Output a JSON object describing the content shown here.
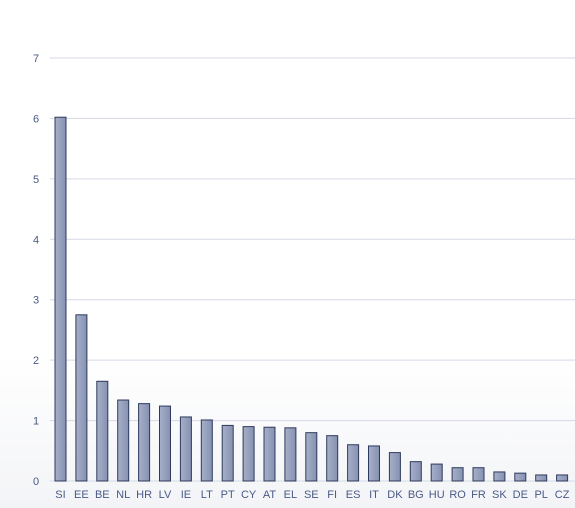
{
  "chart_data": {
    "type": "bar",
    "title": "",
    "xlabel": "",
    "ylabel": "",
    "ylim": [
      0,
      7
    ],
    "yticks": [
      0,
      1,
      2,
      3,
      4,
      5,
      6,
      7
    ],
    "grid": true,
    "categories": [
      "SI",
      "EE",
      "BE",
      "NL",
      "HR",
      "LV",
      "IE",
      "LT",
      "PT",
      "CY",
      "AT",
      "EL",
      "SE",
      "FI",
      "ES",
      "IT",
      "DK",
      "BG",
      "HU",
      "RO",
      "FR",
      "SK",
      "DE",
      "PL",
      "CZ"
    ],
    "values": [
      6.02,
      2.75,
      1.65,
      1.34,
      1.28,
      1.24,
      1.06,
      1.01,
      0.92,
      0.9,
      0.89,
      0.88,
      0.8,
      0.75,
      0.6,
      0.58,
      0.47,
      0.32,
      0.28,
      0.22,
      0.22,
      0.15,
      0.13,
      0.1,
      0.1
    ],
    "colors": {
      "bar_fill_light": "#a7b0c8",
      "bar_fill_dark": "#8591b2",
      "bar_stroke": "#2e3a5c",
      "grid": "#d5d9e6",
      "tick_text": "#4a5a86"
    }
  }
}
